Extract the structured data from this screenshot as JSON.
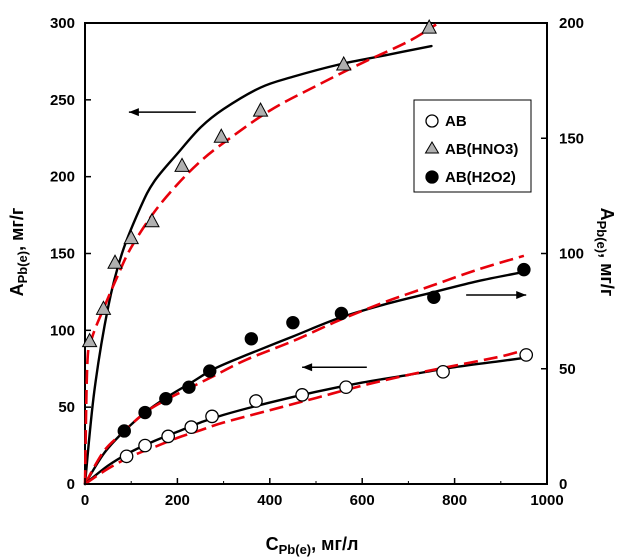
{
  "chart_data": {
    "type": "scatter",
    "xlabel": {
      "main": "C",
      "sub": "Pb(e)",
      "tail": ", мг/л"
    },
    "ylabel_left": {
      "main": "A",
      "sub": "Pb(e)",
      "tail": ", мг/г"
    },
    "ylabel_right": {
      "main": "A",
      "sub": "Pb(e)",
      "tail": ", мг/г"
    },
    "xlim": [
      0,
      1000
    ],
    "ylim_left": [
      0,
      300
    ],
    "ylim_right": [
      0,
      200
    ],
    "x_ticks": [
      "0",
      "200",
      "400",
      "600",
      "800",
      "1000"
    ],
    "y_ticks_left": [
      "0",
      "50",
      "100",
      "150",
      "200",
      "250",
      "300"
    ],
    "y_ticks_right": [
      "0",
      "50",
      "100",
      "150",
      "200"
    ],
    "grid": false,
    "legend_position": "upper-right",
    "colors": {
      "model_solid": "#000000",
      "model_dashed": "#e8000b",
      "triangle_fill": "#b0b0b0",
      "marker_edge": "#000000",
      "filled_circle": "#000000",
      "open_circle": "#ffffff"
    },
    "series": [
      {
        "name": "АВ",
        "marker": "open-circle",
        "axis": "left",
        "x": [
          90,
          130,
          180,
          230,
          275,
          370,
          470,
          565,
          775,
          955
        ],
        "y": [
          18,
          25,
          31,
          37,
          44,
          54,
          58,
          63,
          73,
          84
        ]
      },
      {
        "name": "АВ(HNO3)",
        "marker": "triangle",
        "axis": "left",
        "x": [
          10,
          40,
          65,
          100,
          145,
          210,
          295,
          380,
          560,
          745
        ],
        "y": [
          93,
          114,
          144,
          160,
          171,
          207,
          226,
          243,
          273,
          297
        ]
      },
      {
        "name": "АВ(H2O2)",
        "marker": "filled-circle",
        "axis": "right",
        "x": [
          85,
          130,
          175,
          225,
          270,
          360,
          450,
          555,
          755,
          950
        ],
        "y": [
          23,
          31,
          37,
          42,
          49,
          63,
          70,
          74,
          81,
          93
        ]
      }
    ],
    "fit_curves": [
      {
        "for": "АВ(HNO3)",
        "style": "solid",
        "axis": "left",
        "x": [
          0,
          20,
          50,
          80,
          120,
          150,
          200,
          250,
          300,
          380,
          450,
          550,
          650,
          750
        ],
        "y": [
          0,
          60,
          115,
          150,
          180,
          197,
          215,
          232,
          244,
          258,
          265,
          273,
          279,
          285
        ]
      },
      {
        "for": "АВ(HNO3)",
        "style": "dashed",
        "axis": "left",
        "x": [
          0,
          5,
          15,
          40,
          70,
          100,
          150,
          200,
          250,
          300,
          400,
          500,
          600,
          700,
          760
        ],
        "y": [
          0,
          78,
          95,
          114,
          135,
          154,
          177,
          195,
          210,
          222,
          243,
          259,
          274,
          288,
          299
        ]
      },
      {
        "for": "АВ(H2O2)",
        "style": "solid",
        "axis": "right",
        "x": [
          0,
          40,
          80,
          130,
          180,
          230,
          280,
          350,
          450,
          550,
          650,
          750,
          850,
          950
        ],
        "y": [
          0,
          13,
          22,
          31,
          38,
          44,
          50,
          56,
          64,
          72,
          78,
          83,
          88,
          92
        ]
      },
      {
        "for": "АВ(H2O2)",
        "style": "dashed",
        "axis": "right",
        "x": [
          0,
          40,
          80,
          130,
          180,
          230,
          280,
          350,
          450,
          550,
          650,
          750,
          850,
          950
        ],
        "y": [
          0,
          14,
          22,
          31,
          37,
          42,
          47,
          54,
          62,
          71,
          79,
          86,
          93,
          99
        ]
      },
      {
        "for": "АВ",
        "style": "solid",
        "axis": "left",
        "x": [
          0,
          50,
          100,
          150,
          200,
          250,
          300,
          400,
          500,
          600,
          700,
          800,
          900,
          950
        ],
        "y": [
          0,
          12,
          21,
          28,
          34,
          40,
          45,
          53,
          60,
          66,
          71,
          76,
          80,
          82
        ]
      },
      {
        "for": "АВ",
        "style": "dashed",
        "axis": "left",
        "x": [
          0,
          50,
          100,
          150,
          200,
          250,
          300,
          400,
          500,
          600,
          700,
          800,
          900,
          950
        ],
        "y": [
          0,
          10,
          18,
          24,
          30,
          35,
          40,
          48,
          56,
          64,
          71,
          77,
          83,
          87
        ]
      }
    ],
    "arrows": [
      {
        "axis": "left",
        "x_from": 240,
        "x_to": 95,
        "y": 242
      },
      {
        "axis": "right",
        "x_from": 825,
        "x_to": 955,
        "y": 82
      },
      {
        "axis": "left",
        "x_from": 610,
        "x_to": 470,
        "y": 76
      }
    ]
  }
}
